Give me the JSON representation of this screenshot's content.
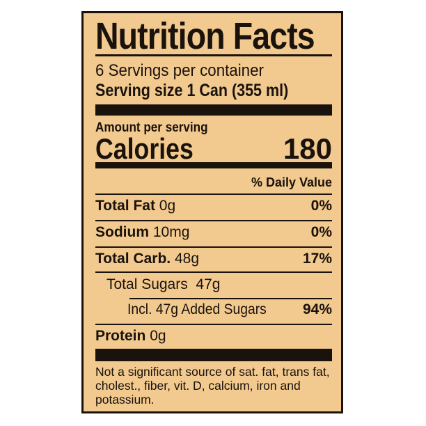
{
  "title": "Nutrition Facts",
  "servings_per_container": "6 Servings per container",
  "serving_size": {
    "label": "Serving size",
    "value": "1 Can (355 ml)"
  },
  "amount_per_serving": "Amount per serving",
  "calories": {
    "label": "Calories",
    "value": "180"
  },
  "daily_value_header": "% Daily Value",
  "nutrients": [
    {
      "label": "Total Fat",
      "amount": "0g",
      "dv": "0%"
    },
    {
      "label": "Sodium",
      "amount": "10mg",
      "dv": "0%"
    },
    {
      "label": "Total Carb.",
      "amount": "48g",
      "dv": "17%"
    },
    {
      "label": "Total Sugars",
      "amount": "47g",
      "dv": ""
    },
    {
      "label": "Incl. 47g Added Sugars",
      "amount": "",
      "dv": "94%"
    },
    {
      "label": "Protein",
      "amount": "0g",
      "dv": ""
    }
  ],
  "footnote": "Not a significant source of sat. fat, trans fat, cholest., fiber, vit. D, calcium, iron and potassium.",
  "colors": {
    "background": "#f2c98e",
    "ink": "#1a120c"
  }
}
